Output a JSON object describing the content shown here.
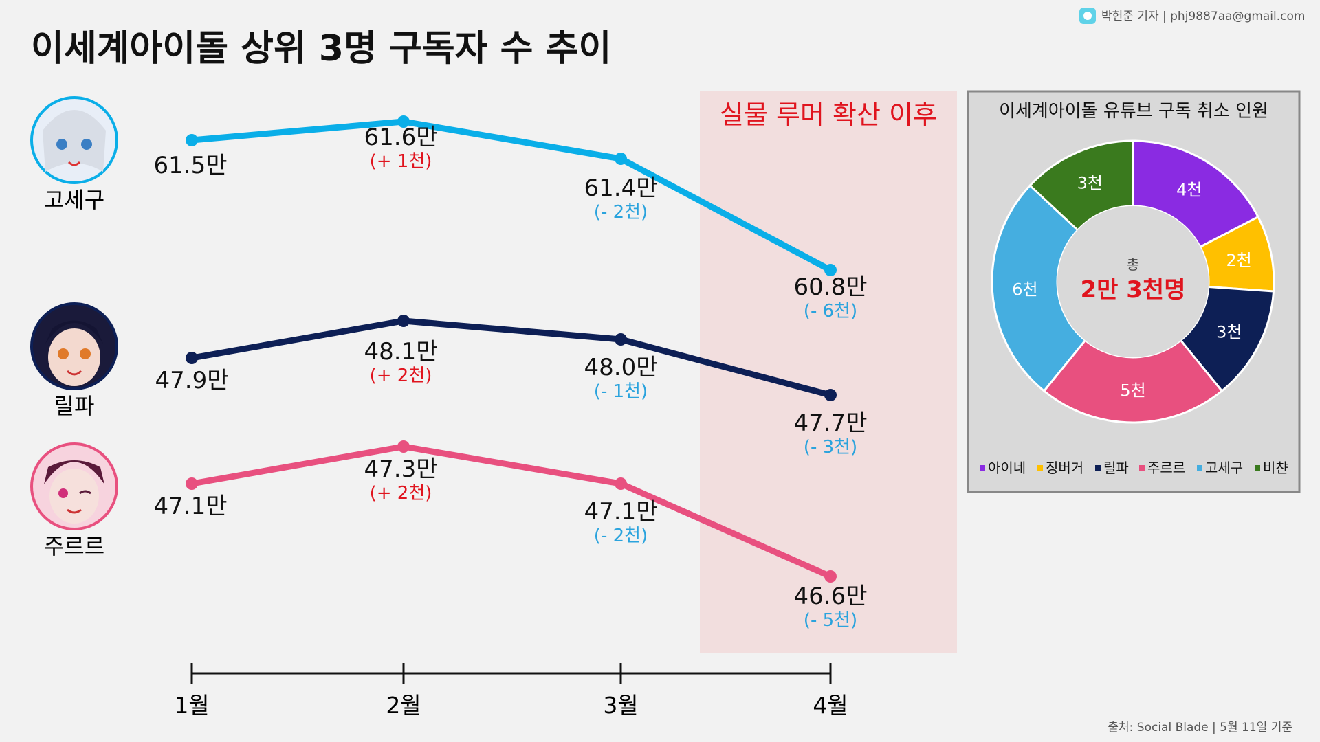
{
  "header": {
    "title": "이세계아이돌 상위 3명 구독자 수 추이",
    "credit": "박헌준 기자 | phj9887aa@gmail.com",
    "source": "출처: Social Blade | 5월 11일 기준"
  },
  "colors": {
    "gosegu": "#0aaee8",
    "lilpa": "#0d1f55",
    "jururu": "#e8507f",
    "highlight": "#f2dede",
    "increase": "#e0141e",
    "decrease": "#2aa3dd"
  },
  "icons": [
    "avatar-gosegu-icon",
    "avatar-lilpa-icon",
    "avatar-jururu-icon",
    "logo-icon"
  ],
  "chart_data": [
    {
      "type": "line",
      "categories": [
        "1월",
        "2월",
        "3월",
        "4월"
      ],
      "highlight": {
        "label": "실물 루머 확산 이후",
        "from": "4월",
        "to": "4월"
      },
      "series": [
        {
          "name": "고세구",
          "color": "#0aaee8",
          "values": [
            61.5,
            61.6,
            61.4,
            60.8
          ],
          "labels": [
            "61.5만",
            "61.6만",
            "61.4만",
            "60.8만"
          ],
          "changes": [
            "",
            "(+ 1천)",
            "(- 2천)",
            "(- 6천)"
          ]
        },
        {
          "name": "릴파",
          "color": "#0d1f55",
          "values": [
            47.9,
            48.1,
            48.0,
            47.7
          ],
          "labels": [
            "47.9만",
            "48.1만",
            "48.0만",
            "47.7만"
          ],
          "changes": [
            "",
            "(+ 2천)",
            "(- 1천)",
            "(- 3천)"
          ]
        },
        {
          "name": "주르르",
          "color": "#e8507f",
          "values": [
            47.1,
            47.3,
            47.1,
            46.6
          ],
          "labels": [
            "47.1만",
            "47.3만",
            "47.1만",
            "46.6만"
          ],
          "changes": [
            "",
            "(+ 2천)",
            "(- 2천)",
            "(- 5천)"
          ]
        }
      ]
    },
    {
      "type": "pie",
      "title": "이세계아이돌 유튜브 구독 취소 인원",
      "center_small": "총",
      "center_total": "2만 3천명",
      "categories": [
        "아이네",
        "징버거",
        "릴파",
        "주르르",
        "고세구",
        "비챤"
      ],
      "values": [
        4,
        2,
        3,
        5,
        6,
        3
      ],
      "labels": [
        "4천",
        "2천",
        "3천",
        "5천",
        "6천",
        "3천"
      ],
      "colors": [
        "#8a2be2",
        "#ffc000",
        "#0d1f55",
        "#e8507f",
        "#45aee0",
        "#3a7a1e"
      ]
    }
  ]
}
